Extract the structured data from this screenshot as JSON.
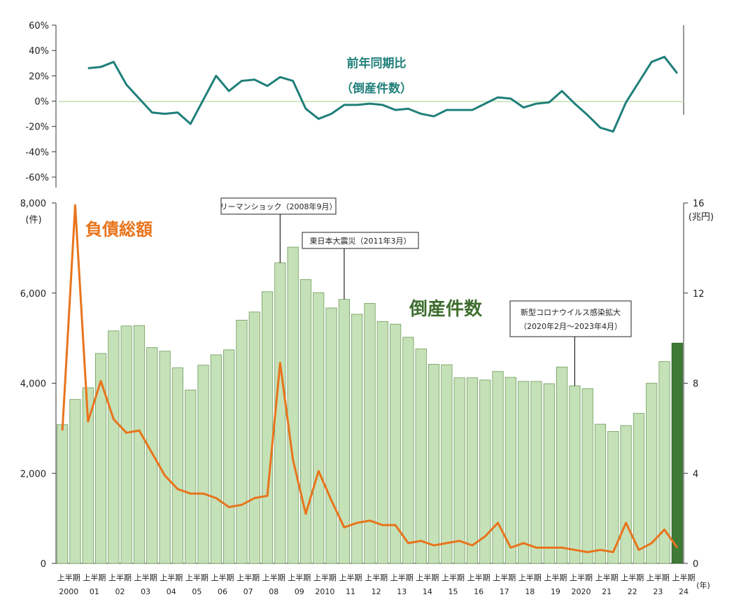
{
  "chart_data": [
    {
      "type": "line",
      "title": "前年同期比",
      "subtitle": "（倒産件数）",
      "ylim": [
        -60,
        60
      ],
      "yticks": [
        60,
        40,
        20,
        0,
        -20,
        -40,
        -60
      ],
      "ytick_labels": [
        "60%",
        "40%",
        "20%",
        "0%",
        "-20%",
        "-40%",
        "-60%"
      ],
      "series": [
        {
          "name": "前年同期比",
          "color": "#1f7f7a",
          "start_index": 2,
          "values": [
            26,
            27,
            31,
            13,
            2,
            -9,
            -10,
            -9,
            -18,
            1,
            20,
            8,
            16,
            17,
            12,
            19,
            16,
            -6,
            -14,
            -10,
            -3,
            -3,
            -2,
            -3,
            -7,
            -6,
            -10,
            -12,
            -7,
            -7,
            -7,
            -2,
            3,
            2,
            -5,
            -2,
            -1,
            8,
            -2,
            -11,
            -21,
            -24,
            -1,
            15,
            31,
            35,
            22
          ]
        }
      ],
      "grid": false
    },
    {
      "type": "bar",
      "title": "倒産件数",
      "ylabel": "(件)",
      "y2label": "(兆円)",
      "ylim": [
        0,
        8000
      ],
      "y2lim": [
        0,
        16
      ],
      "yticks": [
        0,
        2000,
        4000,
        6000,
        8000
      ],
      "ytick_labels": [
        "0",
        "2,000",
        "4,000",
        "6,000",
        "8,000"
      ],
      "y2ticks": [
        0,
        4,
        8,
        12,
        16
      ],
      "y2tick_labels": [
        "0",
        "4",
        "8",
        "12",
        "16"
      ],
      "xunit": "(年)",
      "half_label": "上半期",
      "year_labels": [
        "2000",
        "01",
        "02",
        "03",
        "04",
        "05",
        "06",
        "07",
        "08",
        "09",
        "2010",
        "11",
        "12",
        "13",
        "14",
        "15",
        "16",
        "17",
        "18",
        "19",
        "2020",
        "21",
        "22",
        "23",
        "24"
      ],
      "series": [
        {
          "name": "倒産件数",
          "color": "#c5e1b7",
          "highlight_color": "#3f7a37",
          "highlight_last": true,
          "values": [
            3080,
            3640,
            3900,
            4660,
            5160,
            5270,
            5280,
            4790,
            4710,
            4340,
            3850,
            4400,
            4630,
            4740,
            5400,
            5580,
            6030,
            6670,
            7020,
            6300,
            6010,
            5670,
            5860,
            5530,
            5770,
            5370,
            5310,
            5020,
            4760,
            4420,
            4410,
            4120,
            4120,
            4070,
            4260,
            4130,
            4040,
            4040,
            3990,
            4360,
            3940,
            3880,
            3090,
            2930,
            3060,
            3330,
            4000,
            4480,
            4890
          ]
        },
        {
          "name": "負債総額",
          "color": "#e8741c",
          "axis": "right",
          "values": [
            5.9,
            15.9,
            6.3,
            8.1,
            6.4,
            5.8,
            5.9,
            4.9,
            3.9,
            3.3,
            3.1,
            3.1,
            2.9,
            2.5,
            2.6,
            2.9,
            3.0,
            8.9,
            4.6,
            2.2,
            4.1,
            2.8,
            1.6,
            1.8,
            1.9,
            1.7,
            1.7,
            0.9,
            1.0,
            0.8,
            0.9,
            1.0,
            0.8,
            1.2,
            1.8,
            0.7,
            0.9,
            0.7,
            0.7,
            0.7,
            0.6,
            0.5,
            0.6,
            0.5,
            1.8,
            0.6,
            0.9,
            1.5,
            0.7
          ]
        }
      ],
      "annotations": [
        {
          "text": "リーマンショック（2008年9月）",
          "index": 17
        },
        {
          "text": "東日本大震災（2011年3月）",
          "index": 22
        },
        {
          "text": "新型コロナウイルス感染拡大",
          "text2": "（2020年2月～2023年4月）",
          "index": 40
        }
      ],
      "grid": false
    }
  ]
}
